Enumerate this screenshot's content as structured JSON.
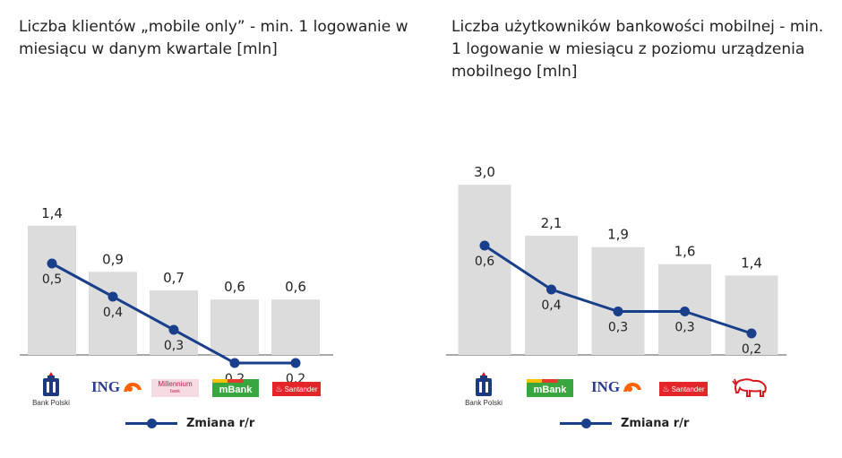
{
  "colors": {
    "bar": "#dcdcdc",
    "line": "#1a3f8a",
    "axis": "#555555",
    "text": "#222222",
    "pko_blue": "#1c3a7c",
    "mbank_green": "#3aa63f",
    "mbank_yellow": "#f2c200",
    "mbank_red": "#e53b2f",
    "santander_red": "#e4262b",
    "millennium_red": "#c21a4c",
    "ing_blue": "#2b3a8c",
    "ing_orange": "#ff6200",
    "pekao_red": "#d71920"
  },
  "chart_data": [
    {
      "type": "bar",
      "title": "Liczba klientów „mobile only” - min. 1 logowanie w miesiącu w danym kwartale [mln]",
      "categories": [
        "PKO Bank Polski",
        "ING",
        "Millennium",
        "mBank",
        "Santander"
      ],
      "series": [
        {
          "values": [
            1.4,
            0.9,
            0.7,
            0.6,
            0.6
          ],
          "labels": [
            "1,4",
            "0,9",
            "0,7",
            "0,6",
            "0,6"
          ]
        },
        {
          "name": "Zmiana r/r",
          "type": "line",
          "values": [
            0.5,
            0.4,
            0.3,
            0.2,
            0.2
          ],
          "labels": [
            "0,5",
            "0,4",
            "0,3",
            "0,2",
            "0,2"
          ]
        }
      ],
      "legend": "bottom"
    },
    {
      "type": "bar",
      "title": "Liczba użytkowników bankowości mobilnej - min. 1 logowanie w miesiącu z poziomu urządzenia mobilnego [mln]",
      "categories": [
        "PKO Bank Polski",
        "mBank",
        "ING",
        "Santander",
        "Pekao"
      ],
      "series": [
        {
          "values": [
            3.0,
            2.1,
            1.9,
            1.6,
            1.4
          ],
          "labels": [
            "3,0",
            "2,1",
            "1,9",
            "1,6",
            "1,4"
          ]
        },
        {
          "name": "Zmiana r/r",
          "type": "line",
          "values": [
            0.6,
            0.4,
            0.3,
            0.3,
            0.2
          ],
          "labels": [
            "0,6",
            "0,4",
            "0,3",
            "0,3",
            "0,2"
          ]
        }
      ],
      "legend": "bottom"
    }
  ],
  "left": {
    "title": "Liczba klientów „mobile only” - min. 1 logowanie w miesiącu w danym kwartale [mln]",
    "legend_label": "Zmiana r/r",
    "logos": {
      "pko_sub": "Bank Polski",
      "ing": "ING",
      "millennium": "Millennium",
      "millennium_sub": "bank",
      "mbank": "mBank",
      "santander": "Santander"
    }
  },
  "right": {
    "title": "Liczba użytkowników bankowości mobilnej - min. 1 logowanie w miesiącu z poziomu urządzenia mobilnego [mln]",
    "legend_label": "Zmiana r/r",
    "logos": {
      "pko_sub": "Bank Polski",
      "mbank": "mBank",
      "ing": "ING",
      "santander": "Santander"
    }
  }
}
